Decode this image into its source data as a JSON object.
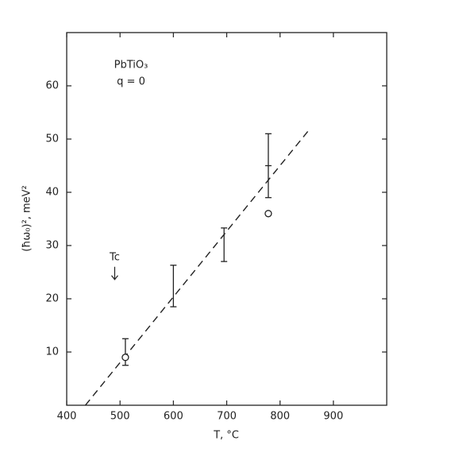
{
  "chart_data": {
    "type": "scatter",
    "xlabel": "T, °C",
    "ylabel": "(ħω₀)², meV²",
    "annotations": {
      "compound": "PbTiO₃",
      "wavevector": "q = 0",
      "tc": "Tc",
      "tc_x": 490,
      "tc_y": 26
    },
    "xlim": [
      400,
      1000
    ],
    "ylim": [
      0,
      70
    ],
    "xticks": [
      400,
      500,
      600,
      700,
      800,
      900
    ],
    "yticks": [
      10,
      20,
      30,
      40,
      50,
      60
    ],
    "points": {
      "x": [
        510,
        778
      ],
      "y": [
        9,
        36
      ]
    },
    "error_bars": {
      "x": [
        510,
        600,
        695,
        778
      ],
      "low": [
        7.5,
        18.5,
        27,
        39
      ],
      "high": [
        12.5,
        26.3,
        33.3,
        51
      ],
      "mid": [
        null,
        null,
        null,
        45
      ]
    },
    "fit_line": {
      "x": [
        435,
        855
      ],
      "y": [
        0,
        51.8
      ]
    },
    "color": "#222"
  }
}
